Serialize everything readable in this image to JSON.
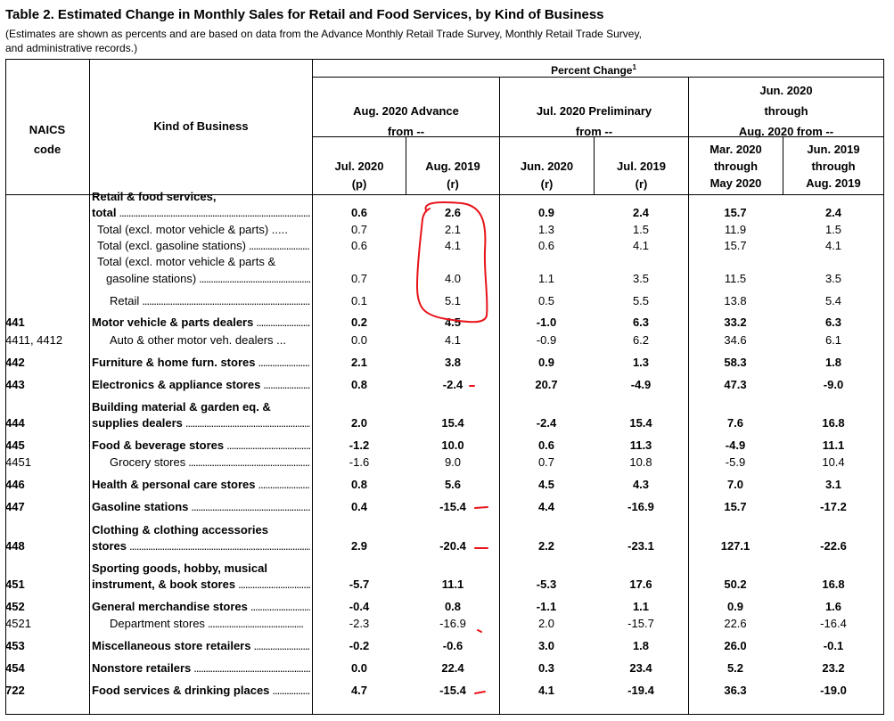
{
  "title": "Table 2.  Estimated Change in Monthly Sales for Retail and Food Services, by Kind of Business",
  "subtitle_lines": [
    "(Estimates are shown as percents and are based on data from the Advance Monthly Retail Trade Survey,  Monthly Retail Trade Survey,",
    "  and administrative records.)"
  ],
  "header": {
    "percent_change": "Percent Change",
    "superscript": "1",
    "naics_line1": "NAICS",
    "naics_line2": "code",
    "kind": "Kind of Business",
    "group1_line1": "Aug. 2020 Advance",
    "group1_line2": "from --",
    "group2_line1": "Jul. 2020 Preliminary",
    "group2_line2": "from --",
    "group3_line1": "Jun. 2020",
    "group3_line2": "through",
    "group3_line3": "Aug. 2020 from --",
    "cols": [
      {
        "l1": "Jul. 2020",
        "l2": "(p)"
      },
      {
        "l1": "Aug. 2019",
        "l2": "(r)"
      },
      {
        "l1": "Jun. 2020",
        "l2": "(r)"
      },
      {
        "l1": "Jul. 2019",
        "l2": "(r)"
      },
      {
        "l0": "Mar. 2020",
        "l1": "through",
        "l2": "May 2020"
      },
      {
        "l0": "Jun. 2019",
        "l1": "through",
        "l2": "Aug. 2019"
      }
    ]
  },
  "rows": [
    {
      "code": "",
      "kob1": "Retail & food services,",
      "kob2": "total",
      "indent": 0,
      "bold": true,
      "vals": [
        "0.6",
        "2.6",
        "0.9",
        "2.4",
        "15.7",
        "2.4"
      ]
    },
    {
      "code": "",
      "kob1": "",
      "kob2": "Total (excl. motor vehicle & parts) .....",
      "indent": 1,
      "bold": false,
      "vals": [
        "0.7",
        "2.1",
        "1.3",
        "1.5",
        "11.9",
        "1.5"
      ]
    },
    {
      "code": "",
      "kob1": "",
      "kob2": "Total (excl. gasoline stations)",
      "indent": 1,
      "bold": false,
      "vals": [
        "0.6",
        "4.1",
        "0.6",
        "4.1",
        "15.7",
        "4.1"
      ]
    },
    {
      "code": "",
      "kob1": "Total (excl. motor vehicle & parts &",
      "kob2": "gasoline stations)",
      "indent": 1,
      "bold": false,
      "vals": [
        "0.7",
        "4.0",
        "1.1",
        "3.5",
        "11.5",
        "3.5"
      ]
    },
    {
      "code": "",
      "kob1": "",
      "kob2": "Retail",
      "indent": 2,
      "bold": false,
      "vals": [
        "0.1",
        "5.1",
        "0.5",
        "5.5",
        "13.8",
        "5.4"
      ]
    },
    {
      "code": "441",
      "kob1": "",
      "kob2": "Motor vehicle & parts dealers",
      "indent": 0,
      "bold": true,
      "vals": [
        "0.2",
        "4.5",
        "-1.0",
        "6.3",
        "33.2",
        "6.3"
      ]
    },
    {
      "code": "4411, 4412",
      "kob1": "",
      "kob2": "Auto & other motor veh. dealers ...",
      "indent": 2,
      "bold": false,
      "vals": [
        "0.0",
        "4.1",
        "-0.9",
        "6.2",
        "34.6",
        "6.1"
      ]
    },
    {
      "code": "442",
      "kob1": "",
      "kob2": "Furniture & home furn. stores",
      "indent": 0,
      "bold": true,
      "vals": [
        "2.1",
        "3.8",
        "0.9",
        "1.3",
        "58.3",
        "1.8"
      ]
    },
    {
      "code": "443",
      "kob1": "",
      "kob2": "Electronics & appliance stores",
      "indent": 0,
      "bold": true,
      "vals": [
        "0.8",
        "-2.4",
        "20.7",
        "-4.9",
        "47.3",
        "-9.0"
      ]
    },
    {
      "code": "444",
      "kob1": "Building material & garden eq. &",
      "kob2": "supplies dealers",
      "indent": 0,
      "bold": true,
      "vals": [
        "2.0",
        "15.4",
        "-2.4",
        "15.4",
        "7.6",
        "16.8"
      ]
    },
    {
      "code": "445",
      "kob1": "",
      "kob2": "Food & beverage stores",
      "indent": 0,
      "bold": true,
      "vals": [
        "-1.2",
        "10.0",
        "0.6",
        "11.3",
        "-4.9",
        "11.1"
      ]
    },
    {
      "code": "4451",
      "kob1": "",
      "kob2": "Grocery stores",
      "indent": 2,
      "bold": false,
      "vals": [
        "-1.6",
        "9.0",
        "0.7",
        "10.8",
        "-5.9",
        "10.4"
      ]
    },
    {
      "code": "446",
      "kob1": "",
      "kob2": "Health & personal care stores",
      "indent": 0,
      "bold": true,
      "vals": [
        "0.8",
        "5.6",
        "4.5",
        "4.3",
        "7.0",
        "3.1"
      ]
    },
    {
      "code": "447",
      "kob1": "",
      "kob2": "Gasoline stations",
      "indent": 0,
      "bold": true,
      "vals": [
        "0.4",
        "-15.4",
        "4.4",
        "-16.9",
        "15.7",
        "-17.2"
      ]
    },
    {
      "code": "448",
      "kob1": "Clothing & clothing accessories",
      "kob2": "stores",
      "indent": 0,
      "bold": true,
      "vals": [
        "2.9",
        "-20.4",
        "2.2",
        "-23.1",
        "127.1",
        "-22.6"
      ]
    },
    {
      "code": "451",
      "kob1": "Sporting goods, hobby, musical",
      "kob2": "instrument, & book stores",
      "indent": 0,
      "bold": true,
      "vals": [
        "-5.7",
        "11.1",
        "-5.3",
        "17.6",
        "50.2",
        "16.8"
      ]
    },
    {
      "code": "452",
      "kob1": "",
      "kob2": "General merchandise stores",
      "indent": 0,
      "bold": true,
      "vals": [
        "-0.4",
        "0.8",
        "-1.1",
        "1.1",
        "0.9",
        "1.6"
      ]
    },
    {
      "code": "4521",
      "kob1": "",
      "kob2": "Department stores",
      "indent": 2,
      "bold": false,
      "vals": [
        "-2.3",
        "-16.9",
        "2.0",
        "-15.7",
        "22.6",
        "-16.4"
      ]
    },
    {
      "code": "453",
      "kob1": "",
      "kob2": "Miscellaneous store retailers",
      "indent": 0,
      "bold": true,
      "vals": [
        "-0.2",
        "-0.6",
        "3.0",
        "1.8",
        "26.0",
        "-0.1"
      ]
    },
    {
      "code": "454",
      "kob1": "",
      "kob2": "Nonstore retailers",
      "indent": 0,
      "bold": true,
      "vals": [
        "0.0",
        "22.4",
        "0.3",
        "23.4",
        "5.2",
        "23.2"
      ]
    },
    {
      "code": "722",
      "kob1": "",
      "kob2": "Food services & drinking places",
      "indent": 0,
      "bold": true,
      "vals": [
        "4.7",
        "-15.4",
        "4.1",
        "-19.4",
        "36.3",
        "-19.0"
      ]
    }
  ],
  "annotation_color": "#e8141a"
}
